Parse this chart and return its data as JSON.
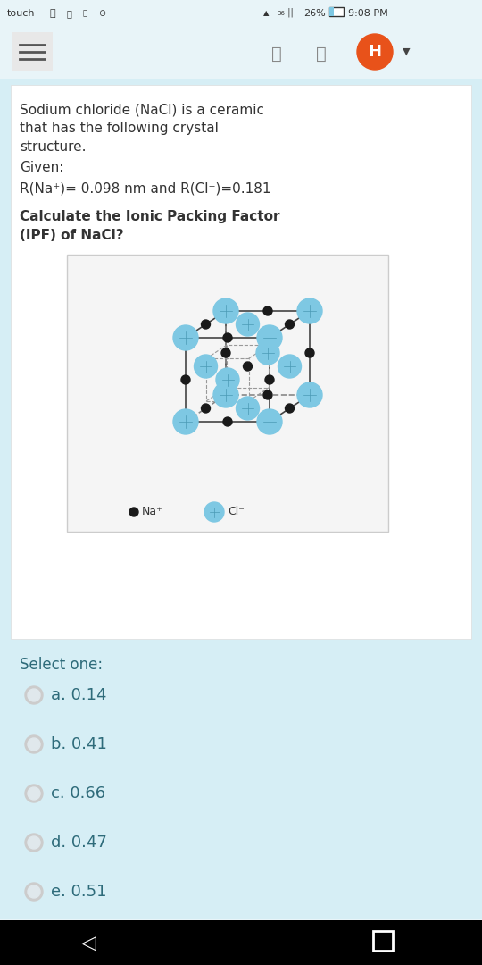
{
  "bg_color": "#e8f4f8",
  "content_bg": "#d6eef5",
  "white_bg": "#ffffff",
  "status_bar_text": "touch   26%   9:08 PM",
  "title_text": "Sodium chloride (NaCl) is a ceramic\nthat has the following crystal\nstructure.",
  "given_label": "Given:",
  "given_text": "R(Na⁺)= 0.098 nm and R(Cl⁻)=0.181",
  "question_text": "Calculate the Ionic Packing Factor\n(IPF) of NaCl?",
  "select_label": "Select one:",
  "options": [
    "a. 0.14",
    "b. 0.41",
    "c. 0.66",
    "d. 0.47",
    "e. 0.51"
  ],
  "na_label": "Na⁺",
  "cl_label": "Cl⁻",
  "na_color": "#1a1a1a",
  "cl_color": "#7ec8e3",
  "text_color": "#2e6b7a",
  "dark_text": "#333333",
  "orange_circle_color": "#e8521a",
  "nav_bg": "#000000",
  "header_icon_color": "#888888"
}
